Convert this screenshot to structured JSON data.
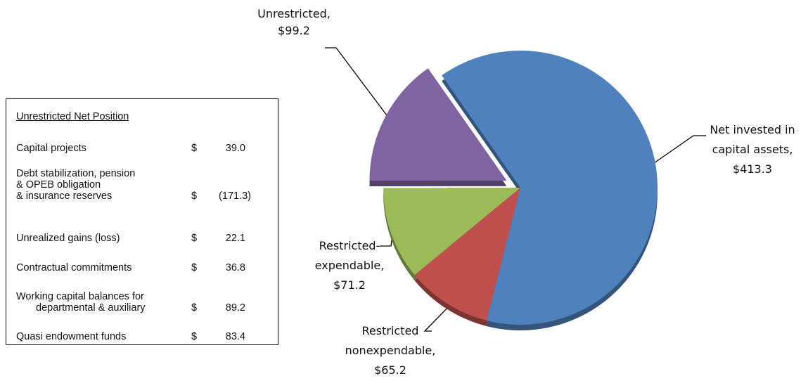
{
  "chart_data": {
    "type": "pie",
    "categories": [
      "Net invested in capital assets,",
      "Restricted nonexpendable,",
      "Restricted-expendable,",
      "Unrestricted,"
    ],
    "values": [
      413.3,
      65.2,
      71.2,
      99.2
    ],
    "value_labels": [
      "$413.3",
      "$65.2",
      "$71.2",
      "$99.2"
    ],
    "colors": [
      "#4f81bd",
      "#c0504d",
      "#9bbb59",
      "#8064a2"
    ],
    "exploded": [
      false,
      false,
      false,
      true
    ]
  },
  "table": {
    "title": "Unrestricted Net Position",
    "rows": [
      {
        "label": [
          "Capital projects"
        ],
        "currency": "$",
        "amount": "39.0"
      },
      {
        "label": [
          "Debt stabilization, pension",
          "& OPEB obligation",
          "& insurance reserves"
        ],
        "currency": "$",
        "amount": "(171.3)"
      },
      {
        "label": [
          "Unrealized gains (loss)"
        ],
        "currency": "$",
        "amount": "22.1"
      },
      {
        "label": [
          "Contractual commitments"
        ],
        "currency": "$",
        "amount": "36.8"
      },
      {
        "label": [
          "Working capital balances for",
          "departmental & auxiliary"
        ],
        "currency": "$",
        "amount": "89.2"
      },
      {
        "label": [
          "Quasi endowment funds"
        ],
        "currency": "$",
        "amount": "83.4"
      }
    ]
  }
}
